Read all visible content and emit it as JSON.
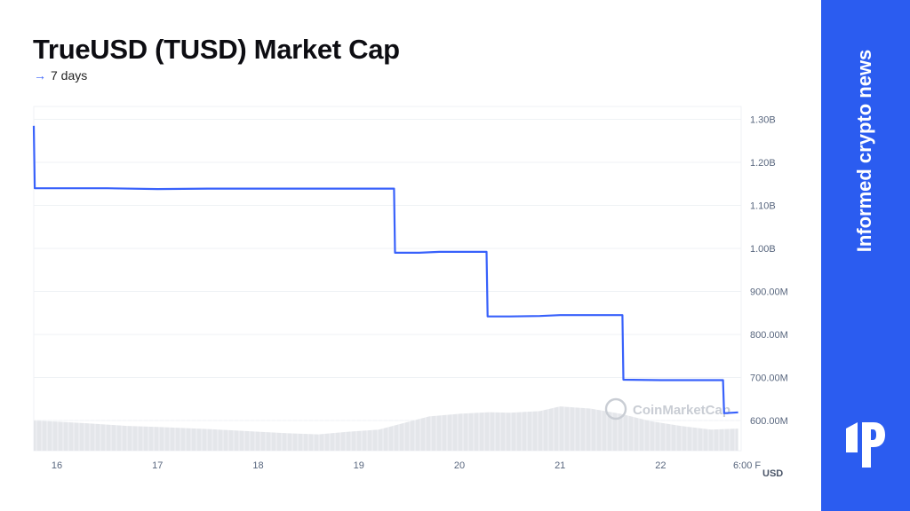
{
  "title": "TrueUSD (TUSD) Market Cap",
  "subtitle": {
    "arrow": "→",
    "text": "7 days"
  },
  "watermark": "CoinMarketCap",
  "sidebar": {
    "tagline": "Informed crypto news",
    "logo_icon": "brand-logo-icon"
  },
  "colors": {
    "line": "#3861fb",
    "volume": "#e4e6ea",
    "grid": "#eff2f5",
    "panel": "#2b5cf0",
    "axis_text": "#58667e"
  },
  "chart_data": {
    "type": "line",
    "title": "TrueUSD (TUSD) Market Cap",
    "ylabel": "USD",
    "ylim": [
      530,
      1330
    ],
    "xlim": [
      15.77,
      22.8
    ],
    "y_ticks": [
      600,
      700,
      800,
      900,
      1000,
      1100,
      1200,
      1300
    ],
    "y_tick_labels": [
      "600.00M",
      "700.00M",
      "800.00M",
      "900.00M",
      "1.00B",
      "1.10B",
      "1.20B",
      "1.30B"
    ],
    "x_ticks": [
      16,
      17,
      18,
      19,
      20,
      21,
      22,
      22.72
    ],
    "x_tick_labels": [
      "16",
      "17",
      "18",
      "19",
      "20",
      "21",
      "22",
      "6:00 F"
    ],
    "unit_label": "USD",
    "grid": true,
    "series": [
      {
        "x": [
          15.77,
          15.78,
          16.5,
          17.0,
          17.5,
          18.0,
          18.5,
          19.0,
          19.3,
          19.35,
          19.36,
          19.6,
          19.8,
          20.0,
          20.25,
          20.27,
          20.28,
          20.5,
          20.8,
          21.0,
          21.3,
          21.6,
          21.62,
          21.63,
          22.0,
          22.3,
          22.62,
          22.63,
          22.77
        ],
        "y": [
          1285,
          1140,
          1140,
          1138,
          1139,
          1139,
          1139,
          1139,
          1139,
          1139,
          990,
          990,
          992,
          992,
          992,
          992,
          842,
          842,
          843,
          845,
          845,
          845,
          845,
          695,
          694,
          694,
          694,
          617,
          619
        ]
      }
    ],
    "volume": {
      "x": [
        15.77,
        16.0,
        16.3,
        16.7,
        17.0,
        17.5,
        18.0,
        18.3,
        18.6,
        18.9,
        19.2,
        19.5,
        19.7,
        20.0,
        20.3,
        20.5,
        20.8,
        21.0,
        21.3,
        21.6,
        21.9,
        22.2,
        22.5,
        22.77
      ],
      "values": [
        0.57,
        0.55,
        0.52,
        0.47,
        0.45,
        0.41,
        0.36,
        0.33,
        0.31,
        0.36,
        0.4,
        0.55,
        0.65,
        0.7,
        0.73,
        0.72,
        0.75,
        0.84,
        0.8,
        0.7,
        0.56,
        0.47,
        0.4,
        0.42
      ]
    }
  }
}
